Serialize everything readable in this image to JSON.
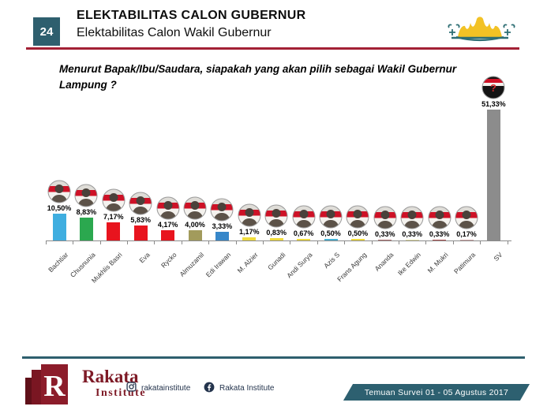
{
  "slide": {
    "number": "24",
    "title": "ELEKTABILITAS CALON GUBERNUR",
    "subtitle": "Elektabilitas Calon Wakil Gubernur"
  },
  "question": {
    "line1": "Menurut Bapak/Ibu/Saudara, siapakah yang akan pilih sebagai Wakil Gubernur",
    "line2": "Lampung ?"
  },
  "chart_data": {
    "type": "bar",
    "title": "Elektabilitas Calon Wakil Gubernur Lampung",
    "categories": [
      "Bachtiar",
      "Chusnunia",
      "Mukhlis Basri",
      "Eva",
      "Rycko",
      "Almuzamil",
      "Edi Irawan",
      "M. Alzier",
      "Gunadi",
      "Andi Surya",
      "Azis S",
      "Frans Agung",
      "Ananda",
      "Ike Edwin",
      "M. Mukri",
      "Patimura",
      "SV"
    ],
    "values": [
      10.5,
      8.83,
      7.17,
      5.83,
      4.17,
      4.0,
      3.33,
      1.17,
      0.83,
      0.67,
      0.5,
      0.5,
      0.33,
      0.33,
      0.33,
      0.17,
      51.33
    ],
    "labels": [
      "10,50%",
      "8,83%",
      "7,17%",
      "5,83%",
      "4,17%",
      "4,00%",
      "3,33%",
      "1,17%",
      "0,83%",
      "0,67%",
      "0,50%",
      "0,50%",
      "0,33%",
      "0,33%",
      "0,33%",
      "0,17%",
      "51,33%"
    ],
    "bar_colors": [
      "#3FAEE0",
      "#2BA84F",
      "#E8141E",
      "#E8141E",
      "#E8141E",
      "#A29B5C",
      "#3787C9",
      "#F0DC3C",
      "#F0DC3C",
      "#F0DC3C",
      "#45B3D6",
      "#F0DC3C",
      "#B06E6E",
      "#E6DFA0",
      "#B05050",
      "#CFA3A3",
      "#8C8C8C"
    ],
    "unknown_category": "SV",
    "xlabel": "",
    "ylabel": "",
    "ylim": [
      0,
      55
    ],
    "grid": false,
    "legend": "none",
    "x_tick_rotation": 45,
    "value_label_format": "comma-decimal percent",
    "avatar_style": "circular candidate photo over red-white Indonesian flag; SV bar uses black silhouette with red question mark",
    "flag_red": "#CE1126",
    "bar_unknown_color": "#8C8C8C"
  },
  "footer": {
    "brand_name": "Rakata",
    "brand_sub": "Institute",
    "brand_monogram": "R",
    "instagram_handle": "rakatainstitute",
    "facebook_name": "Rakata Institute",
    "banner_text": "Temuan Survei 01 - 05 Agustus 2017"
  },
  "colors": {
    "teal": "#2E5F6E",
    "header_line_red": "#A32035",
    "brand_maroon": "#7E1A26",
    "banner_teal": "#2D6070",
    "siger_yellow": "#F2C225"
  }
}
